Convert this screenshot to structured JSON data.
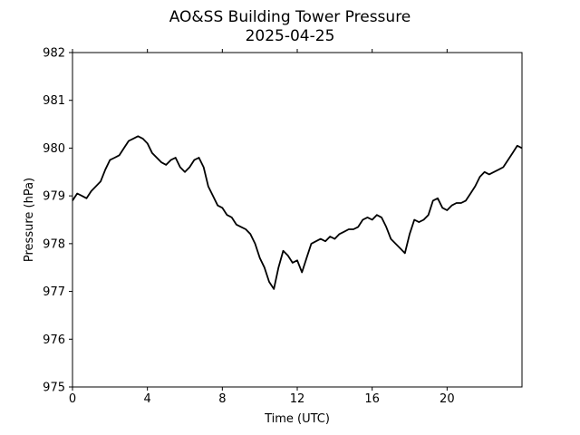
{
  "chart_data": {
    "type": "line",
    "title": "AO&SS Building Tower Pressure",
    "subtitle": "2025-04-25",
    "xlabel": "Time (UTC)",
    "ylabel": "Pressure (hPa)",
    "xlim": [
      0,
      24
    ],
    "ylim": [
      975,
      982
    ],
    "x_ticks": [
      0,
      4,
      8,
      12,
      16,
      20
    ],
    "y_ticks": [
      975,
      976,
      977,
      978,
      979,
      980,
      981,
      982
    ],
    "grid": false,
    "legend": "none",
    "series": [
      {
        "color": "#000000",
        "x": [
          0,
          0.25,
          0.5,
          0.75,
          1,
          1.25,
          1.5,
          1.75,
          2,
          2.25,
          2.5,
          2.75,
          3,
          3.25,
          3.5,
          3.75,
          4,
          4.25,
          4.5,
          4.75,
          5,
          5.25,
          5.5,
          5.75,
          6,
          6.25,
          6.5,
          6.75,
          7,
          7.25,
          7.5,
          7.75,
          8,
          8.25,
          8.5,
          8.75,
          9,
          9.25,
          9.5,
          9.75,
          10,
          10.25,
          10.5,
          10.75,
          11,
          11.25,
          11.5,
          11.75,
          12,
          12.25,
          12.5,
          12.75,
          13,
          13.25,
          13.5,
          13.75,
          14,
          14.25,
          14.5,
          14.75,
          15,
          15.25,
          15.5,
          15.75,
          16,
          16.25,
          16.5,
          16.75,
          17,
          17.25,
          17.5,
          17.75,
          18,
          18.25,
          18.5,
          18.75,
          19,
          19.25,
          19.5,
          19.75,
          20,
          20.25,
          20.5,
          20.75,
          21,
          21.25,
          21.5,
          21.75,
          22,
          22.25,
          22.5,
          22.75,
          23,
          23.25,
          23.5,
          23.75,
          24
        ],
        "y": [
          978.9,
          979.05,
          979.0,
          978.95,
          979.1,
          979.2,
          979.3,
          979.55,
          979.75,
          979.8,
          979.85,
          980.0,
          980.15,
          980.2,
          980.25,
          980.2,
          980.1,
          979.9,
          979.8,
          979.7,
          979.65,
          979.75,
          979.8,
          979.6,
          979.5,
          979.6,
          979.75,
          979.8,
          979.6,
          979.2,
          979.0,
          978.8,
          978.75,
          978.6,
          978.55,
          978.4,
          978.35,
          978.3,
          978.2,
          978.0,
          977.7,
          977.5,
          977.2,
          977.05,
          977.5,
          977.85,
          977.75,
          977.6,
          977.65,
          977.4,
          977.7,
          978.0,
          978.05,
          978.1,
          978.05,
          978.15,
          978.1,
          978.2,
          978.25,
          978.3,
          978.3,
          978.35,
          978.5,
          978.55,
          978.5,
          978.6,
          978.55,
          978.35,
          978.1,
          978.0,
          977.9,
          977.8,
          978.2,
          978.5,
          978.45,
          978.5,
          978.6,
          978.9,
          978.95,
          978.75,
          978.7,
          978.8,
          978.85,
          978.85,
          978.9,
          979.05,
          979.2,
          979.4,
          979.5,
          979.45,
          979.5,
          979.55,
          979.6,
          979.75,
          979.9,
          980.05,
          980.0
        ]
      }
    ]
  }
}
